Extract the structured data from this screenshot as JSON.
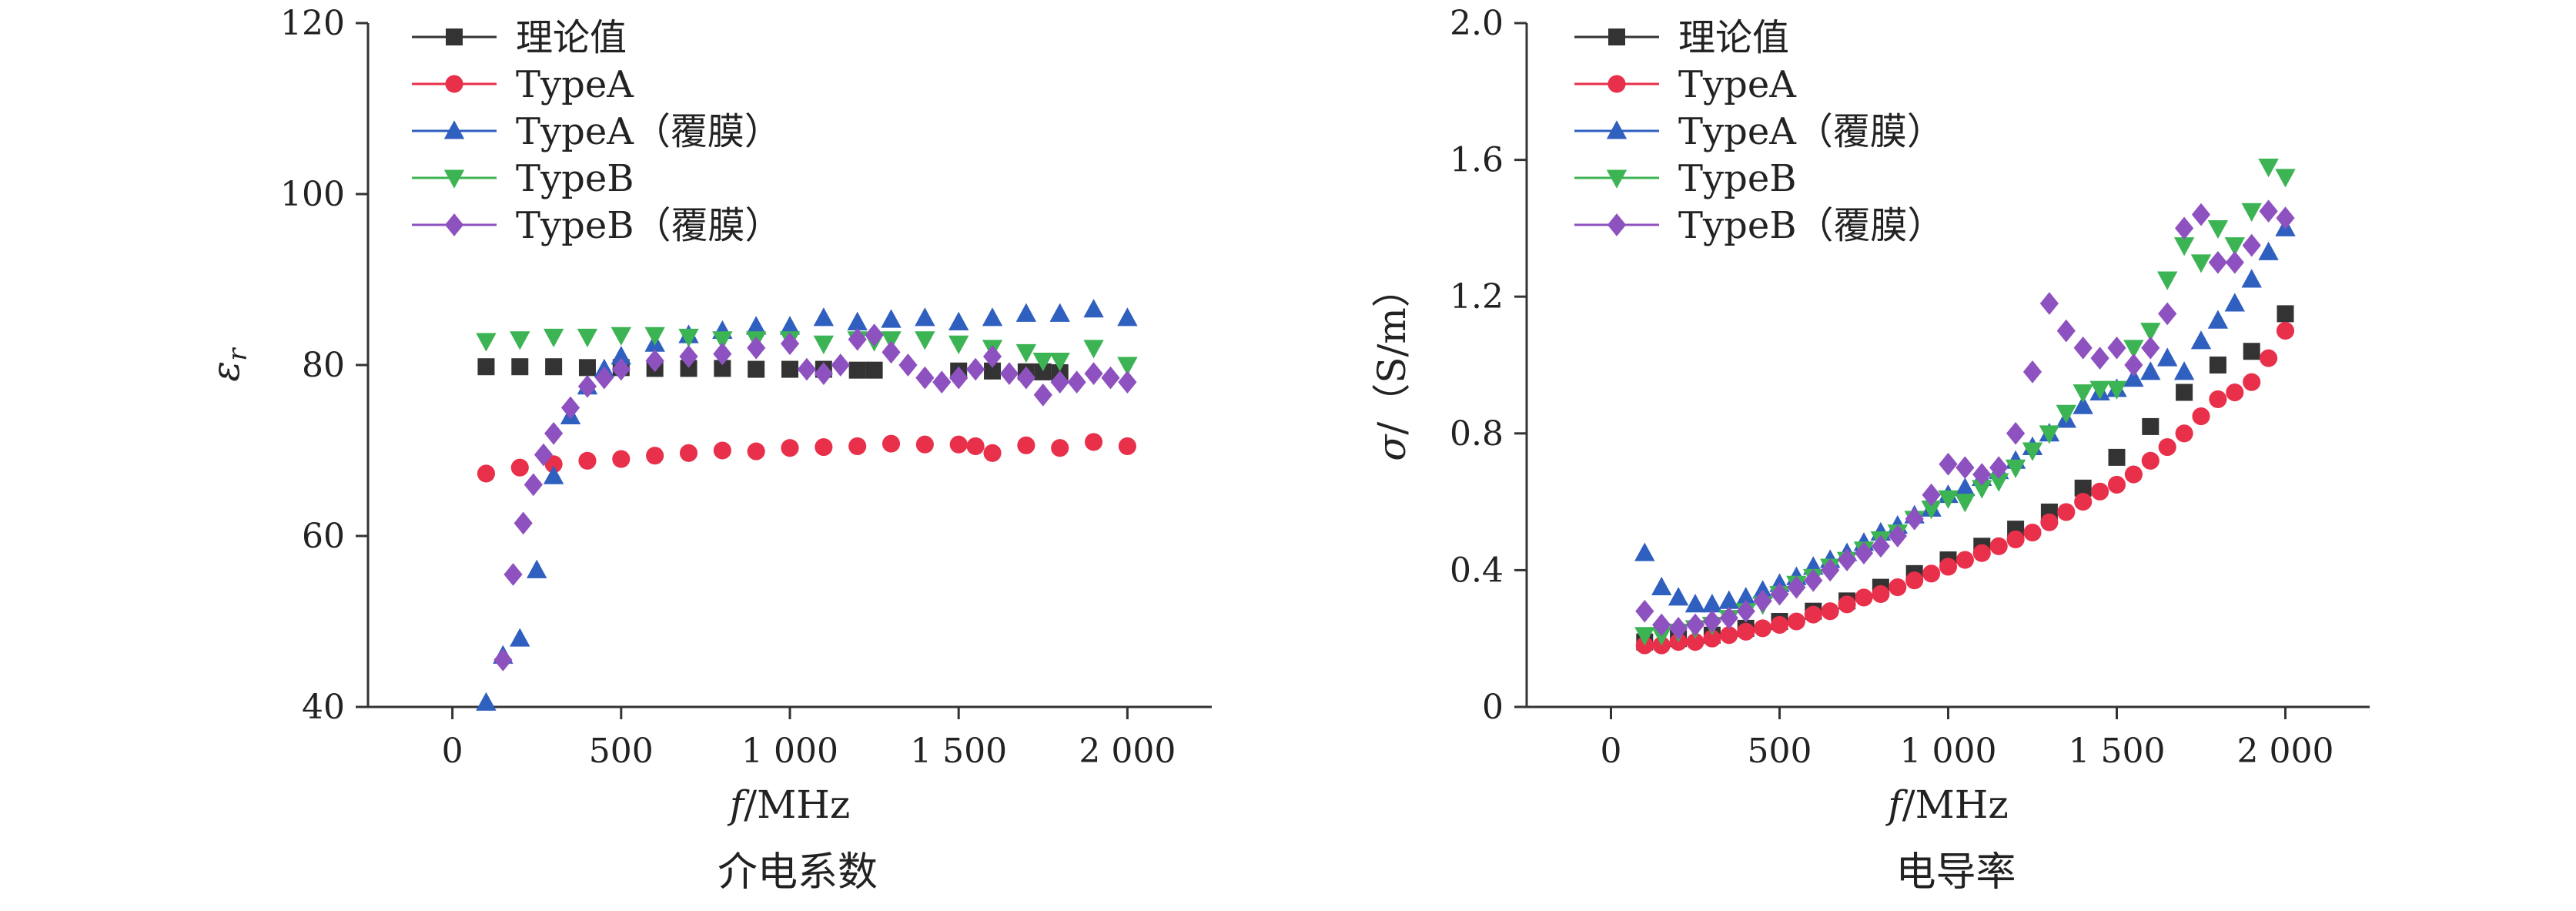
{
  "chart_data": [
    {
      "type": "scatter",
      "caption": "介电系数",
      "xlabel": "f/MHz",
      "ylabel": "εr",
      "xlim": [
        -250,
        2250
      ],
      "ylim": [
        40,
        120
      ],
      "xticks": [
        0,
        500,
        1000,
        1500,
        2000
      ],
      "xtick_labels": [
        "0",
        "500",
        "1 000",
        "1 500",
        "2 000"
      ],
      "yticks": [
        40,
        60,
        80,
        100,
        120
      ],
      "ytick_labels": [
        "40",
        "60",
        "80",
        "100",
        "120"
      ],
      "legend_position": "top-left",
      "series": [
        {
          "name": "理论值",
          "marker": "square",
          "color": "#333333",
          "x": [
            100,
            200,
            300,
            400,
            500,
            600,
            700,
            800,
            900,
            1000,
            1100,
            1200,
            1250,
            1500,
            1600,
            1700,
            1750,
            1800
          ],
          "y": [
            79.8,
            79.8,
            79.8,
            79.7,
            79.7,
            79.6,
            79.6,
            79.6,
            79.5,
            79.5,
            79.5,
            79.4,
            79.4,
            79.3,
            79.3,
            79.2,
            79.2,
            79.1
          ]
        },
        {
          "name": "TypeA",
          "marker": "circle",
          "color": "#e8304a",
          "x": [
            100,
            200,
            300,
            400,
            500,
            600,
            700,
            800,
            900,
            1000,
            1100,
            1200,
            1300,
            1400,
            1500,
            1550,
            1600,
            1700,
            1800,
            1900,
            2000
          ],
          "y": [
            67.3,
            68.0,
            68.4,
            68.8,
            69.0,
            69.4,
            69.7,
            70.0,
            69.9,
            70.3,
            70.4,
            70.5,
            70.8,
            70.7,
            70.7,
            70.5,
            69.7,
            70.6,
            70.3,
            71.0,
            70.5
          ]
        },
        {
          "name": "TypeA（覆膜）",
          "marker": "triangle-up",
          "color": "#2f5fbf",
          "x": [
            100,
            150,
            200,
            250,
            300,
            350,
            400,
            450,
            500,
            600,
            700,
            800,
            900,
            1000,
            1100,
            1200,
            1300,
            1400,
            1500,
            1600,
            1700,
            1800,
            1900,
            2000
          ],
          "y": [
            40.5,
            46.0,
            48.0,
            56.0,
            67.0,
            74.0,
            77.5,
            79.5,
            81.0,
            82.5,
            83.5,
            84.0,
            84.5,
            84.5,
            85.5,
            85.0,
            85.3,
            85.5,
            85.0,
            85.5,
            86.0,
            86.0,
            86.5,
            85.5
          ]
        },
        {
          "name": "TypeB",
          "marker": "triangle-down",
          "color": "#3cb454",
          "x": [
            100,
            200,
            300,
            400,
            500,
            600,
            700,
            800,
            900,
            1000,
            1100,
            1200,
            1250,
            1300,
            1400,
            1500,
            1600,
            1700,
            1750,
            1800,
            1900,
            2000
          ],
          "y": [
            82.8,
            83.0,
            83.3,
            83.3,
            83.5,
            83.5,
            83.3,
            83.0,
            83.0,
            83.0,
            82.5,
            83.0,
            82.8,
            83.0,
            83.0,
            82.5,
            82.0,
            81.5,
            80.5,
            80.5,
            82.0,
            80.0
          ]
        },
        {
          "name": "TypeB（覆膜）",
          "marker": "diamond",
          "color": "#8e52c0",
          "x": [
            150,
            180,
            210,
            240,
            270,
            300,
            350,
            400,
            450,
            500,
            600,
            700,
            800,
            900,
            1000,
            1050,
            1100,
            1150,
            1200,
            1250,
            1300,
            1350,
            1400,
            1450,
            1500,
            1550,
            1600,
            1650,
            1700,
            1750,
            1800,
            1850,
            1900,
            1950,
            2000
          ],
          "y": [
            45.5,
            55.5,
            61.5,
            66.0,
            69.5,
            72.0,
            75.0,
            77.5,
            78.5,
            79.5,
            80.5,
            81.0,
            81.3,
            82.0,
            82.5,
            79.5,
            79.0,
            80.0,
            83.0,
            83.5,
            81.5,
            80.0,
            78.5,
            78.0,
            78.5,
            79.5,
            81.0,
            79.0,
            78.5,
            76.5,
            78.0,
            78.0,
            79.0,
            78.5,
            78.0
          ]
        }
      ]
    },
    {
      "type": "scatter",
      "caption": "电导率",
      "xlabel": "f/MHz",
      "ylabel": "σ/（S/m）",
      "xlim": [
        -250,
        2250
      ],
      "ylim": [
        0,
        2.0
      ],
      "xticks": [
        0,
        500,
        1000,
        1500,
        2000
      ],
      "xtick_labels": [
        "0",
        "500",
        "1 000",
        "1 500",
        "2 000"
      ],
      "yticks": [
        0,
        0.4,
        0.8,
        1.2,
        1.6,
        2.0
      ],
      "ytick_labels": [
        "0",
        "0.4",
        "0.8",
        "1.2",
        "1.6",
        "2.0"
      ],
      "legend_position": "top-left",
      "series": [
        {
          "name": "理论值",
          "marker": "square",
          "color": "#333333",
          "x": [
            100,
            200,
            300,
            400,
            500,
            600,
            700,
            800,
            900,
            1000,
            1100,
            1200,
            1300,
            1400,
            1500,
            1600,
            1700,
            1800,
            1900,
            2000
          ],
          "y": [
            0.19,
            0.2,
            0.21,
            0.23,
            0.25,
            0.28,
            0.31,
            0.35,
            0.39,
            0.43,
            0.47,
            0.52,
            0.57,
            0.64,
            0.73,
            0.82,
            0.92,
            1.0,
            1.04,
            1.15
          ]
        },
        {
          "name": "TypeA",
          "marker": "circle",
          "color": "#e8304a",
          "x": [
            100,
            150,
            200,
            250,
            300,
            350,
            400,
            450,
            500,
            550,
            600,
            650,
            700,
            750,
            800,
            850,
            900,
            950,
            1000,
            1050,
            1100,
            1150,
            1200,
            1250,
            1300,
            1350,
            1400,
            1450,
            1500,
            1550,
            1600,
            1650,
            1700,
            1750,
            1800,
            1850,
            1900,
            1950,
            2000
          ],
          "y": [
            0.18,
            0.18,
            0.19,
            0.19,
            0.2,
            0.21,
            0.22,
            0.23,
            0.24,
            0.25,
            0.27,
            0.28,
            0.3,
            0.32,
            0.33,
            0.35,
            0.37,
            0.39,
            0.41,
            0.43,
            0.45,
            0.47,
            0.49,
            0.51,
            0.54,
            0.57,
            0.6,
            0.63,
            0.65,
            0.68,
            0.72,
            0.76,
            0.8,
            0.85,
            0.9,
            0.92,
            0.95,
            1.02,
            1.1
          ]
        },
        {
          "name": "TypeA（覆膜）",
          "marker": "triangle-up",
          "color": "#2f5fbf",
          "x": [
            100,
            150,
            200,
            250,
            300,
            350,
            400,
            450,
            500,
            550,
            600,
            650,
            700,
            750,
            800,
            850,
            900,
            950,
            1000,
            1050,
            1100,
            1150,
            1200,
            1250,
            1300,
            1350,
            1400,
            1450,
            1500,
            1550,
            1600,
            1650,
            1700,
            1750,
            1800,
            1850,
            1900,
            1950,
            2000
          ],
          "y": [
            0.45,
            0.35,
            0.32,
            0.3,
            0.3,
            0.31,
            0.32,
            0.34,
            0.36,
            0.38,
            0.41,
            0.43,
            0.45,
            0.48,
            0.51,
            0.53,
            0.56,
            0.58,
            0.62,
            0.64,
            0.67,
            0.69,
            0.72,
            0.76,
            0.8,
            0.84,
            0.88,
            0.92,
            0.93,
            0.96,
            0.98,
            1.02,
            0.98,
            1.07,
            1.13,
            1.18,
            1.25,
            1.33,
            1.4
          ]
        },
        {
          "name": "TypeB",
          "marker": "triangle-down",
          "color": "#3cb454",
          "x": [
            100,
            150,
            200,
            250,
            300,
            350,
            400,
            450,
            500,
            550,
            600,
            650,
            700,
            750,
            800,
            850,
            900,
            950,
            1000,
            1050,
            1100,
            1150,
            1200,
            1250,
            1300,
            1350,
            1400,
            1450,
            1500,
            1550,
            1600,
            1650,
            1700,
            1750,
            1800,
            1850,
            1900,
            1950,
            2000
          ],
          "y": [
            0.21,
            0.21,
            0.22,
            0.23,
            0.24,
            0.26,
            0.28,
            0.3,
            0.33,
            0.36,
            0.38,
            0.41,
            0.43,
            0.46,
            0.49,
            0.51,
            0.55,
            0.58,
            0.61,
            0.6,
            0.64,
            0.66,
            0.7,
            0.75,
            0.8,
            0.86,
            0.92,
            0.93,
            0.93,
            1.05,
            1.1,
            1.25,
            1.35,
            1.3,
            1.4,
            1.35,
            1.45,
            1.58,
            1.55
          ]
        },
        {
          "name": "TypeB（覆膜）",
          "marker": "diamond",
          "color": "#8e52c0",
          "x": [
            100,
            150,
            200,
            250,
            300,
            350,
            400,
            450,
            500,
            550,
            600,
            650,
            700,
            750,
            800,
            850,
            900,
            950,
            1000,
            1050,
            1100,
            1150,
            1200,
            1250,
            1300,
            1350,
            1400,
            1450,
            1500,
            1550,
            1600,
            1650,
            1700,
            1750,
            1800,
            1850,
            1900,
            1950,
            2000
          ],
          "y": [
            0.28,
            0.24,
            0.23,
            0.24,
            0.25,
            0.26,
            0.28,
            0.31,
            0.33,
            0.35,
            0.37,
            0.4,
            0.43,
            0.45,
            0.47,
            0.5,
            0.55,
            0.62,
            0.71,
            0.7,
            0.68,
            0.7,
            0.8,
            0.98,
            1.18,
            1.1,
            1.05,
            1.02,
            1.05,
            1.0,
            1.05,
            1.15,
            1.4,
            1.44,
            1.3,
            1.3,
            1.35,
            1.45,
            1.43
          ]
        }
      ]
    }
  ]
}
